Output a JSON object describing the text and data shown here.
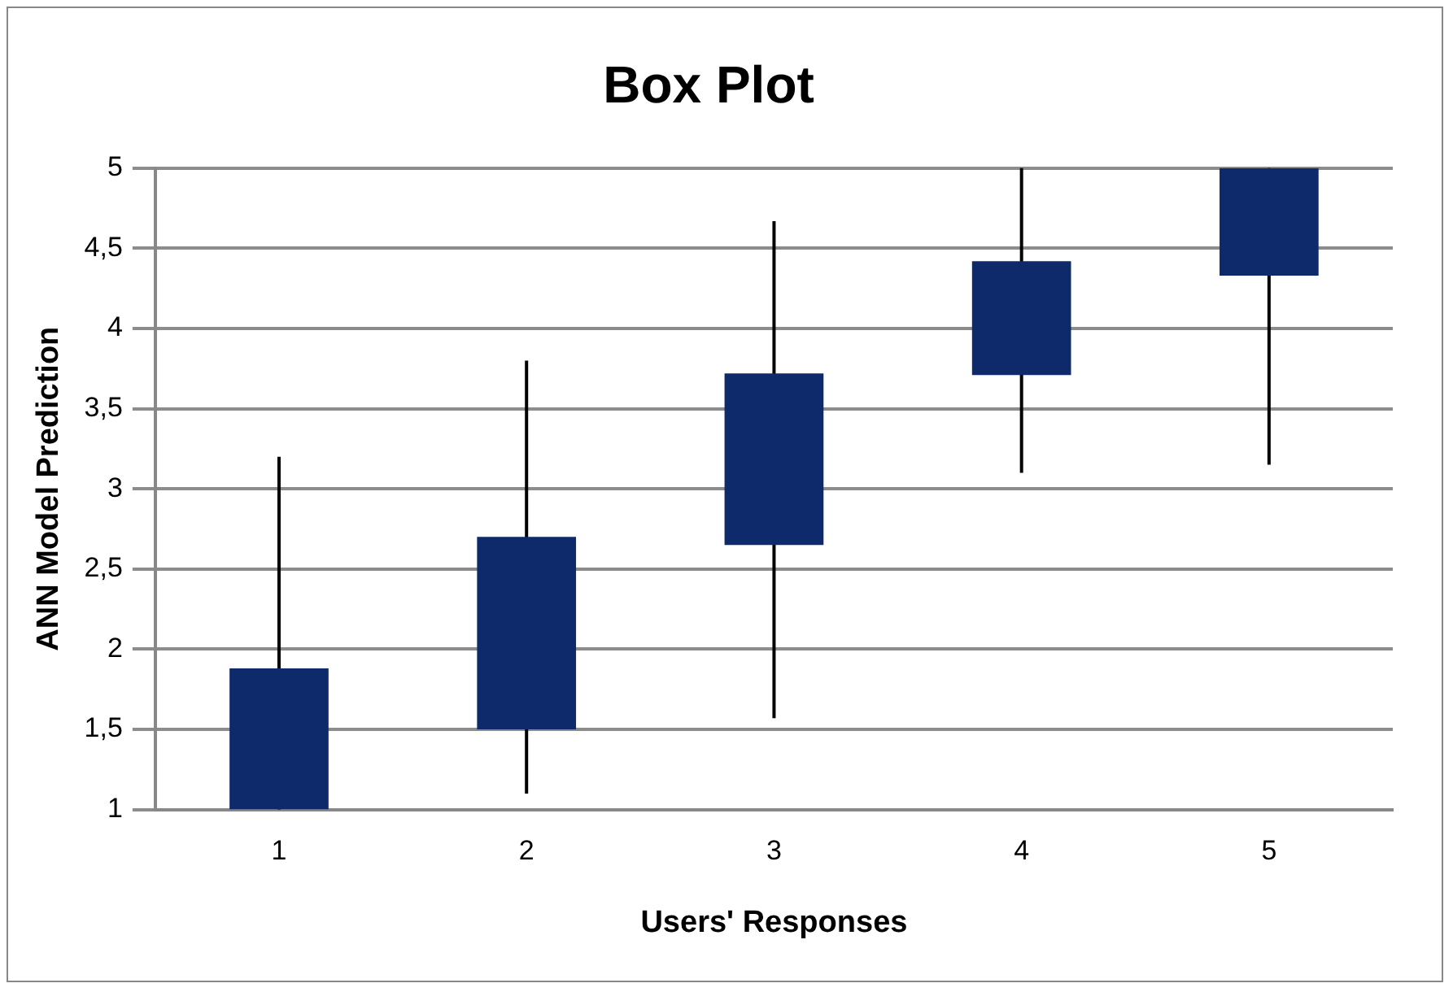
{
  "chart_data": {
    "type": "candlestick",
    "title": "Box Plot",
    "xlabel": "Users' Responses",
    "ylabel": "ANN Model Prediction",
    "categories": [
      "1",
      "2",
      "3",
      "4",
      "5"
    ],
    "ohlc": [
      [
        1,
        3.2,
        1,
        1.88
      ],
      [
        1.5,
        3.8,
        1.1,
        2.7
      ],
      [
        2.65,
        4.67,
        1.57,
        3.72
      ],
      [
        3.71,
        5,
        3.1,
        4.42
      ],
      [
        4.33,
        5,
        3.15,
        5
      ]
    ],
    "color": "#0f2a6b",
    "ylim": [
      1,
      5
    ],
    "yticks": [
      1,
      {
        "value": 1.5,
        "label": "1,5"
      },
      2,
      {
        "value": 2.5,
        "label": "2,5"
      },
      3,
      {
        "value": 3.5,
        "label": "3,5"
      },
      4,
      {
        "value": 4.5,
        "label": "4,5"
      },
      5
    ],
    "grid": "y",
    "legend": false
  }
}
